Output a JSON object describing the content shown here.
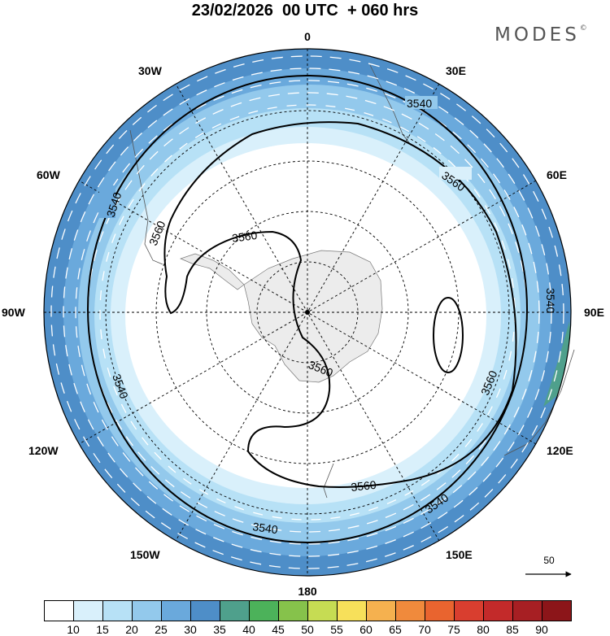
{
  "header": {
    "title": "23/02/2026  00 UTC  + 060 hrs",
    "brand": "MODES",
    "brand_mark": "©"
  },
  "map": {
    "projection": "polar stereographic (south pole)",
    "longitude_labels": [
      {
        "text": "0",
        "lon": 0
      },
      {
        "text": "30E",
        "lon": 30
      },
      {
        "text": "60E",
        "lon": 60
      },
      {
        "text": "90E",
        "lon": 90
      },
      {
        "text": "120E",
        "lon": 120
      },
      {
        "text": "150E",
        "lon": 150
      },
      {
        "text": "180",
        "lon": 180
      },
      {
        "text": "150W",
        "lon": -150
      },
      {
        "text": "120W",
        "lon": -120
      },
      {
        "text": "90W",
        "lon": -90
      },
      {
        "text": "60W",
        "lon": -60
      },
      {
        "text": "30W",
        "lon": -30
      }
    ],
    "contour_labels": [
      "3540",
      "3560"
    ],
    "wind_reference": {
      "value": "50"
    }
  },
  "colorbar": {
    "ticks": [
      "10",
      "15",
      "20",
      "25",
      "30",
      "35",
      "40",
      "45",
      "50",
      "55",
      "60",
      "65",
      "70",
      "75",
      "80",
      "85",
      "90"
    ],
    "colors": [
      "#ffffff",
      "#d9f0fb",
      "#b7e1f6",
      "#93c9ec",
      "#6aa9dc",
      "#4e8ec8",
      "#4fa08c",
      "#4cb25a",
      "#86c24b",
      "#c6dc53",
      "#f7e05a",
      "#f5b14f",
      "#f08a3c",
      "#e9642f",
      "#d93e2f",
      "#c32a2a",
      "#a71f23",
      "#8c1519"
    ]
  }
}
